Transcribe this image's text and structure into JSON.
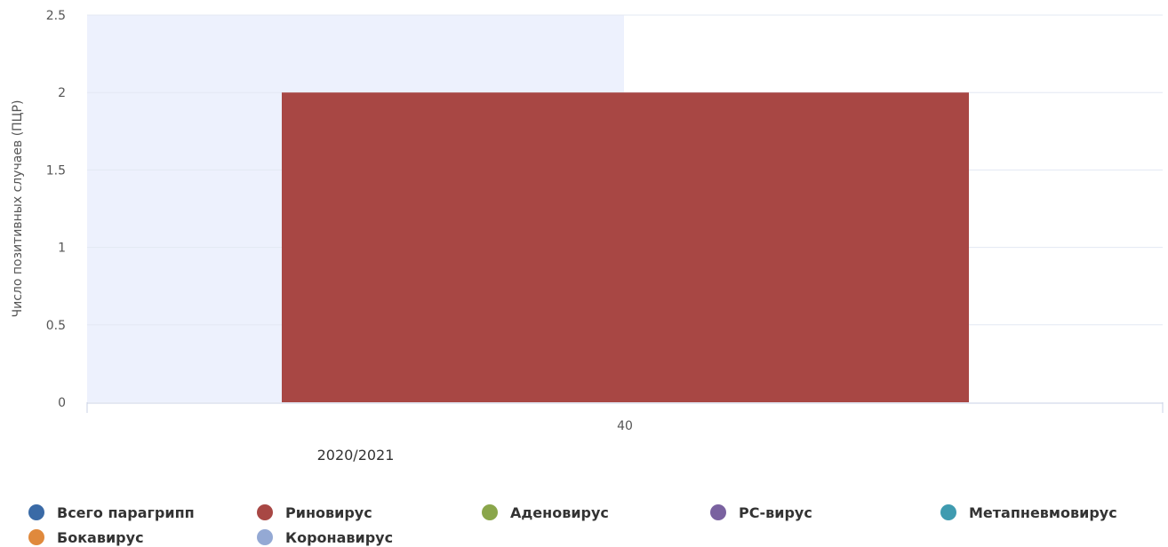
{
  "chart_data": {
    "type": "bar",
    "ylabel": "Число позитивных случаев (ПЦР)",
    "xlabel": "",
    "categories": [
      "40"
    ],
    "ylim": [
      0,
      2.5
    ],
    "yticks": [
      "0",
      "0.5",
      "1",
      "1.5",
      "2",
      "2.5"
    ],
    "season_label": "2020/2021",
    "series": [
      {
        "name": "Всего парагрипп",
        "color": "#3a6aa6",
        "values": [
          0
        ]
      },
      {
        "name": "Риновирус",
        "color": "#a84744",
        "values": [
          2
        ]
      },
      {
        "name": "Аденовирус",
        "color": "#8aa64b",
        "values": [
          0
        ]
      },
      {
        "name": "РС-вирус",
        "color": "#7a62a0",
        "values": [
          0
        ]
      },
      {
        "name": "Метапневмовирус",
        "color": "#3f9bb0",
        "values": [
          0
        ]
      },
      {
        "name": "Бокавирус",
        "color": "#e0893c",
        "values": [
          0
        ]
      },
      {
        "name": "Коронавирус",
        "color": "#94a9d4",
        "values": [
          0
        ]
      }
    ],
    "grid": true,
    "legend_position": "bottom"
  }
}
